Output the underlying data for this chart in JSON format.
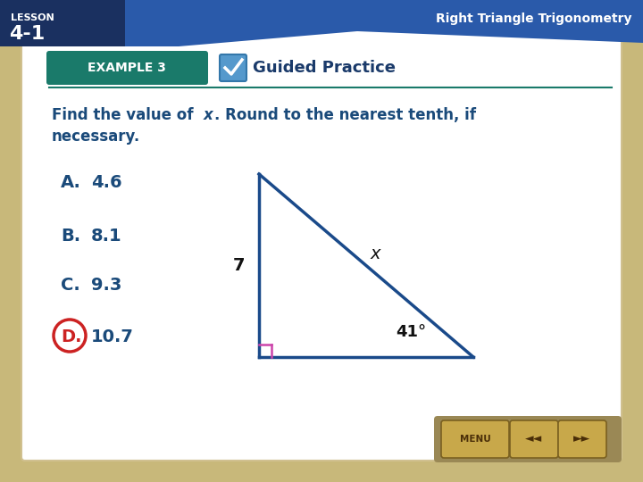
{
  "bg_color": "#c8b87a",
  "main_bg": "#ffffff",
  "lesson_bg_dark": "#1a3060",
  "lesson_bg_blue": "#2a5aaa",
  "lesson_text_1": "LESSON",
  "lesson_text_2": "4-1",
  "header_right_text": "Right Triangle Trigonometry",
  "example_label": "EXAMPLE 3",
  "example_label_bg": "#1a7a6a",
  "guided_text": "Guided Practice",
  "guided_text_color": "#1a3a6a",
  "question_line1": "Find the value of ",
  "question_x": "x",
  "question_line1_rest": ". Round to the nearest tenth, if",
  "question_line2": "necessary.",
  "options": [
    {
      "letter": "A.",
      "value": "4.6",
      "highlight": false
    },
    {
      "letter": "B.",
      "value": "8.1",
      "highlight": false
    },
    {
      "letter": "C.",
      "value": "9.3",
      "highlight": false
    },
    {
      "letter": "D.",
      "value": "10.7",
      "highlight": true
    }
  ],
  "triangle_color": "#1a4a8a",
  "right_angle_color": "#cc44aa",
  "side_label_7": "7",
  "side_label_x": "x",
  "angle_label": "41°",
  "answer_circle_color": "#cc2222",
  "text_color_blue": "#1a4a7a",
  "text_color_dark": "#1a3a5c",
  "text_color_black": "#111111",
  "nav_bg": "#9a8855",
  "nav_btn_bg": "#c8a84a",
  "nav_btn_edge": "#7a6020"
}
